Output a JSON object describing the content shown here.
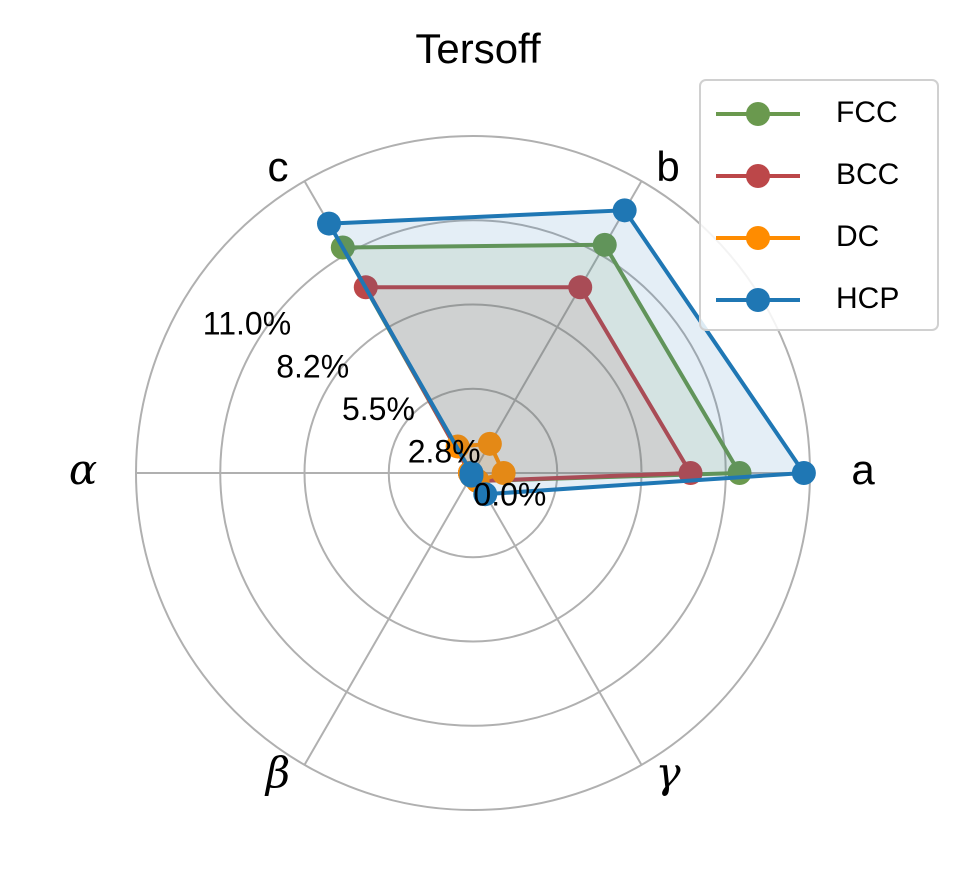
{
  "chart_data": {
    "type": "radar",
    "title": "Tersoff",
    "categories": [
      "a",
      "b",
      "c",
      "α",
      "β",
      "γ"
    ],
    "ylim": [
      0,
      11.0
    ],
    "yticks": [
      {
        "value": 0,
        "label": "0.0%"
      },
      {
        "value": 2.75,
        "label": "2.8%"
      },
      {
        "value": 5.5,
        "label": "5.5%"
      },
      {
        "value": 8.25,
        "label": "8.2%"
      },
      {
        "value": 11.0,
        "label": "11.0%"
      }
    ],
    "grid": true,
    "legend": "upper right",
    "series": [
      {
        "name": "FCC",
        "color": "#6a994e",
        "values": [
          8.7,
          8.6,
          8.5,
          0.1,
          0.1,
          0.3
        ]
      },
      {
        "name": "BCC",
        "color": "#bc4749",
        "values": [
          7.1,
          7.0,
          7.0,
          0.1,
          0.1,
          0.3
        ]
      },
      {
        "name": "DC",
        "color": "#ff8c00",
        "values": [
          1.0,
          1.1,
          1.0,
          0.1,
          0.1,
          0.3
        ]
      },
      {
        "name": "HCP",
        "color": "#1f77b4",
        "values": [
          10.8,
          9.9,
          9.4,
          0.05,
          0.1,
          0.8
        ]
      }
    ]
  }
}
